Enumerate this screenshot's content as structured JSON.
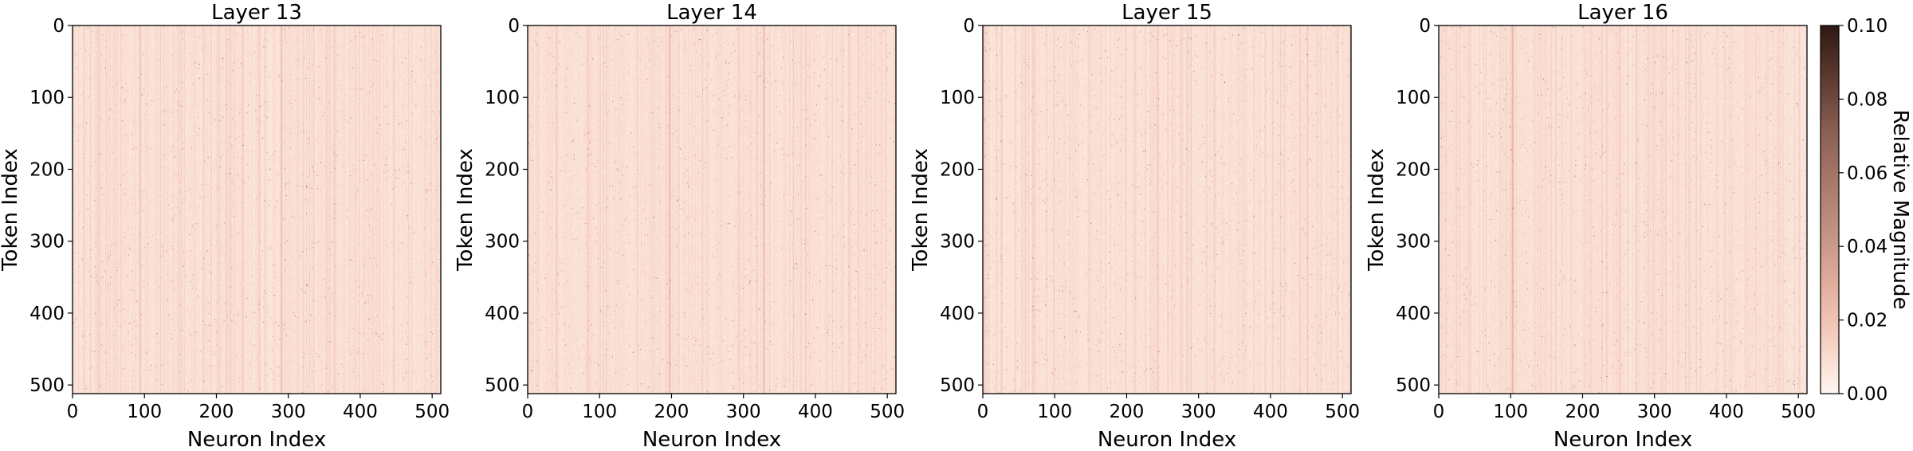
{
  "chart_data": {
    "type": "heatmap",
    "panels": [
      {
        "title": "Layer 13",
        "xlabel": "Neuron Index",
        "ylabel": "Token Index",
        "seed": 13
      },
      {
        "title": "Layer 14",
        "xlabel": "Neuron Index",
        "ylabel": "Token Index",
        "seed": 14
      },
      {
        "title": "Layer 15",
        "xlabel": "Neuron Index",
        "ylabel": "Token Index",
        "seed": 15
      },
      {
        "title": "Layer 16",
        "xlabel": "Neuron Index",
        "ylabel": "Token Index",
        "seed": 16
      }
    ],
    "x_range": [
      0,
      512
    ],
    "y_range": [
      0,
      512
    ],
    "y_inverted": true,
    "x_ticks": [
      0,
      100,
      200,
      300,
      400,
      500
    ],
    "y_ticks": [
      0,
      100,
      200,
      300,
      400,
      500
    ],
    "colorbar": {
      "label": "Relative Magnitude",
      "range": [
        0.0,
        0.1
      ],
      "ticks": [
        "0.00",
        "0.02",
        "0.04",
        "0.06",
        "0.08",
        "0.10"
      ],
      "colors": [
        "#fff5f0",
        "#f7d0c2",
        "#e3b0a0",
        "#c49484",
        "#a87a6c",
        "#8a5e52",
        "#5e3a30",
        "#2e1812"
      ]
    },
    "description_values": {
      "background_level": 0.008,
      "highlighted_columns": [
        {
          "panel": "Layer 13",
          "neuron": 290
        },
        {
          "panel": "Layer 14",
          "neuron": 197
        },
        {
          "panel": "Layer 14",
          "neuron": 328
        },
        {
          "panel": "Layer 16",
          "neuron": 102
        }
      ]
    }
  }
}
